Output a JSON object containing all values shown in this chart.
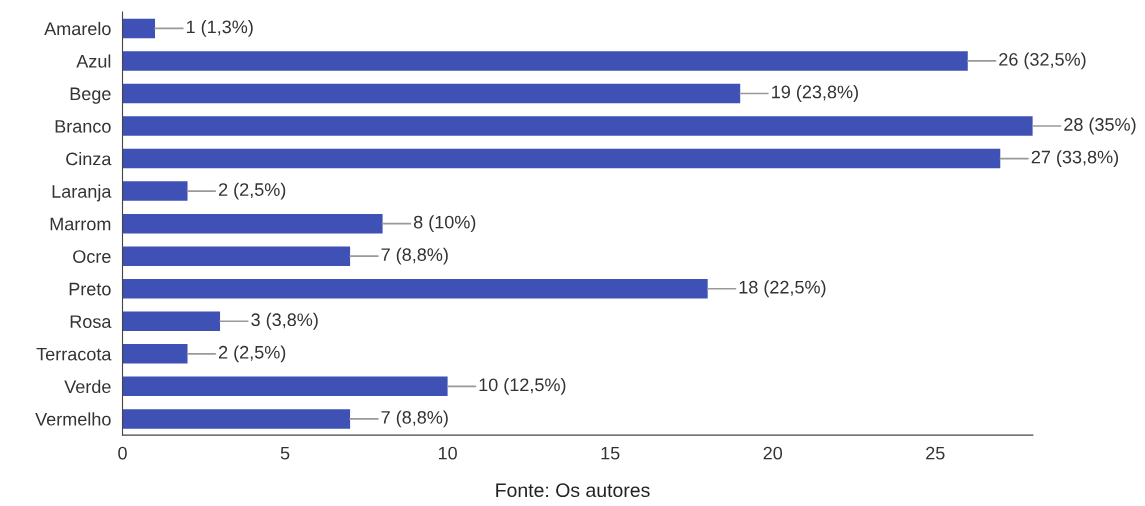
{
  "chart_data": {
    "type": "bar",
    "orientation": "horizontal",
    "categories": [
      "Amarelo",
      "Azul",
      "Bege",
      "Branco",
      "Cinza",
      "Laranja",
      "Marrom",
      "Ocre",
      "Preto",
      "Rosa",
      "Terracota",
      "Verde",
      "Vermelho"
    ],
    "values": [
      1,
      26,
      19,
      28,
      27,
      2,
      8,
      7,
      18,
      3,
      2,
      10,
      7
    ],
    "value_labels": [
      "1 (1,3%)",
      "26 (32,5%)",
      "19 (23,8%)",
      "28 (35%)",
      "27 (33,8%)",
      "2 (2,5%)",
      "8 (10%)",
      "7 (8,8%)",
      "18 (22,5%)",
      "3 (3,8%)",
      "2 (2,5%)",
      "10 (12,5%)",
      "7 (8,8%)"
    ],
    "color": "#3f51b5",
    "xlim": [
      0,
      28
    ],
    "xticks": [
      0,
      5,
      10,
      15,
      20,
      25
    ],
    "grid": false,
    "legend": false,
    "annotations": [
      "Fonte: Os autores"
    ]
  }
}
